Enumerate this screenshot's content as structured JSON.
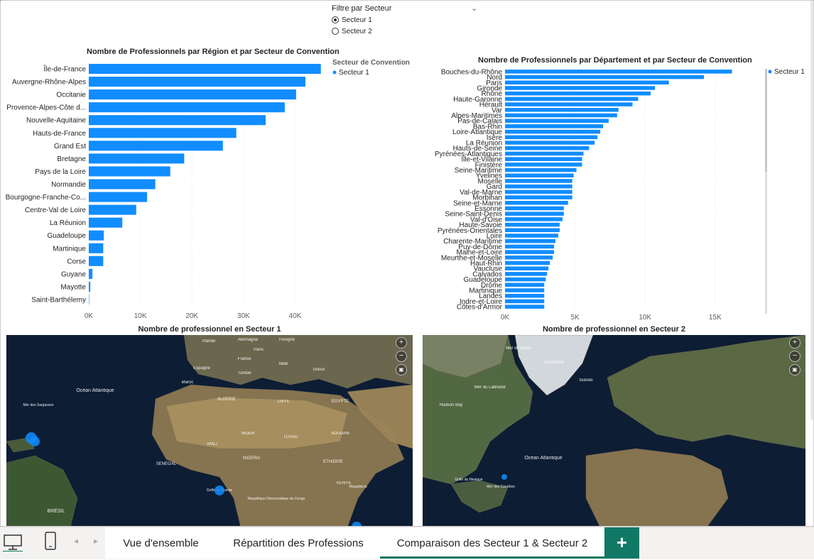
{
  "slicer": {
    "title": "Filtre par Secteur",
    "options": [
      {
        "label": "Secteur 1",
        "selected": true
      },
      {
        "label": "Secteur 2",
        "selected": false
      }
    ]
  },
  "chart_data": [
    {
      "type": "bar",
      "orientation": "horizontal",
      "title": "Nombre de Professionnels par Région et par Secteur de Convention",
      "legend_title": "Secteur de Convention",
      "legend_position": "top-right",
      "categories": [
        "Île-de-France",
        "Auvergne-Rhône-Alpes",
        "Occitanie",
        "Provence-Alpes-Côte d...",
        "Nouvelle-Aquitaine",
        "Hauts-de-France",
        "Grand Est",
        "Bretagne",
        "Pays de la Loire",
        "Normandie",
        "Bourgogne-Franche-Co...",
        "Centre-Val de Loire",
        "La Réunion",
        "Guadeloupe",
        "Martinique",
        "Corse",
        "Guyane",
        "Mayotte",
        "Saint-Barthélemy"
      ],
      "series": [
        {
          "name": "Secteur 1",
          "values": [
            45000,
            42000,
            40200,
            38000,
            34300,
            28600,
            26000,
            18500,
            15800,
            12900,
            11300,
            9200,
            6500,
            2900,
            2800,
            2800,
            700,
            300,
            50
          ]
        }
      ],
      "xticks": [
        "0K",
        "10K",
        "20K",
        "30K",
        "40K"
      ],
      "xlim": [
        0,
        46000
      ],
      "grid": true,
      "color": "#118DFF"
    },
    {
      "type": "bar",
      "orientation": "horizontal",
      "title": "Nombre de Professionnels par Département et par Secteur de Convention",
      "legend_position": "top-right",
      "categories": [
        "Bouches-du-Rhône",
        "Nord",
        "Paris",
        "Gironde",
        "Rhône",
        "Haute-Garonne",
        "Hérault",
        "Var",
        "Alpes-Maritimes",
        "Pas-de-Calais",
        "Bas-Rhin",
        "Loire-Atlantique",
        "Isère",
        "La Réunion",
        "Hauts-de-Seine",
        "Pyrénées-Atlantiques",
        "Ille-et-Vilaine",
        "Finistère",
        "Seine-Maritime",
        "Yvelines",
        "Moselle",
        "Gard",
        "Val-de-Marne",
        "Morbihan",
        "Seine-et-Marne",
        "Essonne",
        "Seine-Saint-Denis",
        "Val-d'Oise",
        "Haute-Savoie",
        "Pyrénées-Orientales",
        "Loire",
        "Charente-Maritime",
        "Puy-de-Dôme",
        "Maine-et-Loire",
        "Meurthe-et-Moselle",
        "Haut-Rhin",
        "Vaucluse",
        "Calvados",
        "Guadeloupe",
        "Drôme",
        "Martinique",
        "Landes",
        "Indre-et-Loire",
        "Côtes-d'Armor"
      ],
      "series": [
        {
          "name": "Secteur 1",
          "values": [
            16200,
            14200,
            11700,
            10700,
            10400,
            9500,
            9100,
            8100,
            8000,
            7400,
            7000,
            6800,
            6600,
            6400,
            6000,
            5600,
            5500,
            5500,
            5100,
            4900,
            4800,
            4800,
            4800,
            4800,
            4500,
            4200,
            4200,
            4100,
            3900,
            3900,
            3800,
            3600,
            3500,
            3500,
            3400,
            3200,
            3100,
            3000,
            2900,
            2800,
            2800,
            2800,
            2800,
            2800
          ]
        }
      ],
      "xticks": [
        "0K",
        "5K",
        "10K",
        "15K"
      ],
      "xlim": [
        0,
        18000
      ],
      "grid": true,
      "color": "#118DFF"
    }
  ],
  "maps": [
    {
      "title": "Nombre de professionnel en Secteur 1",
      "labels": [
        "Irlande",
        "Allemagne",
        "Pologne",
        "Paris",
        "France",
        "Italie",
        "Espagne",
        "Grèce",
        "Tunisie",
        "Maroc",
        "ALGÉRIE",
        "LIBYE",
        "ÉGYPTE",
        "Océan Atlantique",
        "Mer des Sargasses",
        "SÉNÉGAL",
        "MALI",
        "NIGER",
        "TCHAD",
        "SOUDAN",
        "ÉTHIOPIE",
        "NIGÉRIA",
        "KENYA",
        "BRÉSIL",
        "Mogadiscio",
        "Golfe de Guinée",
        "République Démocratique du Congo"
      ]
    },
    {
      "title": "Nombre de professionnel en Secteur 2",
      "labels": [
        "Mer de Baffin",
        "Groenland",
        "Islande",
        "Mer du Labrador",
        "Océan Atlantique",
        "Golfe du Mexique",
        "Mer des Caraïbes",
        "Hudson Bay"
      ]
    }
  ],
  "tabs": [
    {
      "label": "Vue d'ensemble",
      "active": false
    },
    {
      "label": "Répartition des Professions",
      "active": false
    },
    {
      "label": "Comparaison des Secteur 1 & Secteur 2",
      "active": true
    }
  ],
  "add_tab_label": "+",
  "colors": {
    "bar": "#118DFF",
    "tab_accent": "#117865"
  },
  "icons": {
    "desktop": "desktop-icon",
    "phone": "phone-icon",
    "prev": "chevron-left-icon",
    "next": "chevron-right-icon"
  }
}
